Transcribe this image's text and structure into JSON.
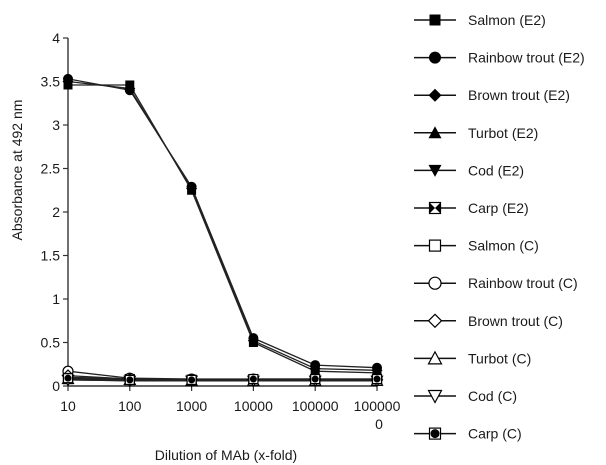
{
  "chart_data": {
    "type": "line",
    "xlabel": "Dilution of MAb (x-fold)",
    "ylabel": "Absorbance at  492 nm",
    "x": [
      10,
      100,
      1000,
      10000,
      100000,
      1000000
    ],
    "x_ticklabels": [
      "10",
      "100",
      "1000",
      "10000",
      "100000",
      "100000\n0"
    ],
    "x_scale": "log",
    "ylim": [
      0,
      4
    ],
    "y_ticklabels": [
      "0",
      "0.5",
      "1",
      "1.5",
      "2",
      "2.5",
      "3",
      "3.5",
      "4"
    ],
    "grid": false,
    "legend_position": "right",
    "series": [
      {
        "name": "Salmon (E2)",
        "marker": "square-filled",
        "values": [
          3.46,
          3.46,
          2.25,
          0.5,
          0.17,
          0.15
        ]
      },
      {
        "name": "Rainbow trout (E2)",
        "marker": "circle-filled",
        "values": [
          3.53,
          3.4,
          2.29,
          0.55,
          0.24,
          0.21
        ]
      },
      {
        "name": "Brown trout (E2)",
        "marker": "diamond-filled",
        "values": [
          3.5,
          3.42,
          2.27,
          0.52,
          0.2,
          0.18
        ]
      },
      {
        "name": "Turbot (E2)",
        "marker": "triangle-up-filled",
        "values": [
          0.08,
          0.06,
          0.06,
          0.06,
          0.06,
          0.06
        ]
      },
      {
        "name": "Cod (E2)",
        "marker": "triangle-down-filled",
        "values": [
          0.07,
          0.06,
          0.06,
          0.06,
          0.06,
          0.06
        ]
      },
      {
        "name": "Carp (E2)",
        "marker": "square-x",
        "values": [
          0.08,
          0.07,
          0.07,
          0.07,
          0.07,
          0.07
        ]
      },
      {
        "name": "Salmon (C)",
        "marker": "square-open",
        "values": [
          0.1,
          0.08,
          0.07,
          0.07,
          0.06,
          0.06
        ]
      },
      {
        "name": "Rainbow trout (C)",
        "marker": "circle-open",
        "values": [
          0.17,
          0.09,
          0.08,
          0.08,
          0.08,
          0.08
        ]
      },
      {
        "name": "Brown trout (C)",
        "marker": "diamond-open",
        "values": [
          0.12,
          0.08,
          0.07,
          0.07,
          0.07,
          0.07
        ]
      },
      {
        "name": "Turbot (C)",
        "marker": "triangle-up-open",
        "values": [
          0.08,
          0.07,
          0.06,
          0.06,
          0.06,
          0.06
        ]
      },
      {
        "name": "Cod (C)",
        "marker": "triangle-down-open",
        "values": [
          0.07,
          0.06,
          0.06,
          0.06,
          0.06,
          0.06
        ]
      },
      {
        "name": "Carp (C)",
        "marker": "circle-in-square",
        "values": [
          0.09,
          0.07,
          0.07,
          0.08,
          0.08,
          0.08
        ]
      }
    ]
  }
}
